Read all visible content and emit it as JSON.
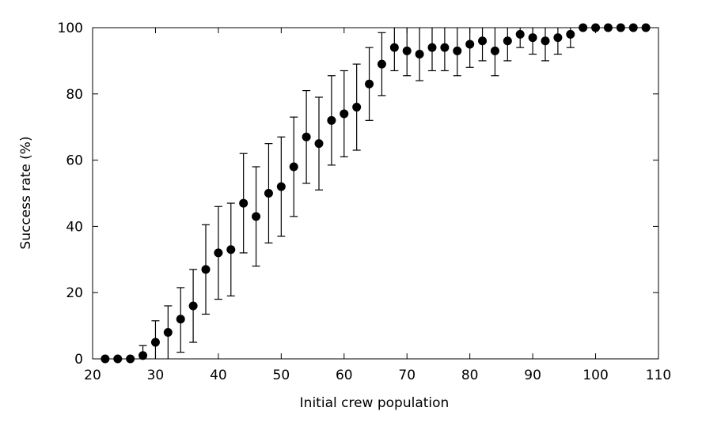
{
  "chart_data": {
    "type": "scatter",
    "title": "",
    "xlabel": "Initial crew population",
    "ylabel": "Success rate (%)",
    "xlim": [
      20,
      110
    ],
    "ylim": [
      0,
      100
    ],
    "xticks": [
      20,
      30,
      40,
      50,
      60,
      70,
      80,
      90,
      100,
      110
    ],
    "yticks": [
      0,
      20,
      40,
      60,
      80,
      100
    ],
    "grid": false,
    "legend": "none",
    "marker_color": "#000000",
    "series": [
      {
        "x": [
          22,
          24,
          26,
          28,
          30,
          32,
          34,
          36,
          38,
          40,
          42,
          44,
          46,
          48,
          50,
          52,
          54,
          56,
          58,
          60,
          62,
          64,
          66,
          68,
          70,
          72,
          74,
          76,
          78,
          80,
          82,
          84,
          86,
          88,
          90,
          92,
          94,
          96,
          98,
          100,
          102,
          104,
          106,
          108
        ],
        "y": [
          0,
          0,
          0,
          1,
          5,
          8,
          12,
          16,
          27,
          32,
          33,
          47,
          43,
          50,
          52,
          58,
          67,
          65,
          72,
          74,
          76,
          83,
          89,
          94,
          93,
          92,
          94,
          94,
          93,
          95,
          96,
          93,
          96,
          98,
          97,
          96,
          97,
          98,
          100,
          100,
          100,
          100,
          100,
          100
        ],
        "err_low": [
          0,
          0,
          0,
          0,
          0,
          0,
          2,
          5,
          13.5,
          18,
          19,
          32,
          28,
          35,
          37,
          43,
          53,
          51,
          58.5,
          61,
          63,
          72,
          79.5,
          87,
          85.5,
          84,
          87,
          87,
          85.5,
          88,
          90,
          85.5,
          90,
          94,
          92,
          90,
          92,
          94,
          100,
          100,
          100,
          100,
          100,
          100
        ],
        "err_high": [
          0,
          0,
          0,
          4,
          11.5,
          16,
          21.5,
          27,
          40.5,
          46,
          47,
          62,
          58,
          65,
          67,
          73,
          81,
          79,
          85.5,
          87,
          89,
          94,
          98.5,
          100,
          100,
          100,
          100,
          100,
          100,
          100,
          100,
          100,
          100,
          100,
          100,
          100,
          100,
          100,
          100,
          100,
          100,
          100,
          100,
          100
        ]
      }
    ]
  }
}
